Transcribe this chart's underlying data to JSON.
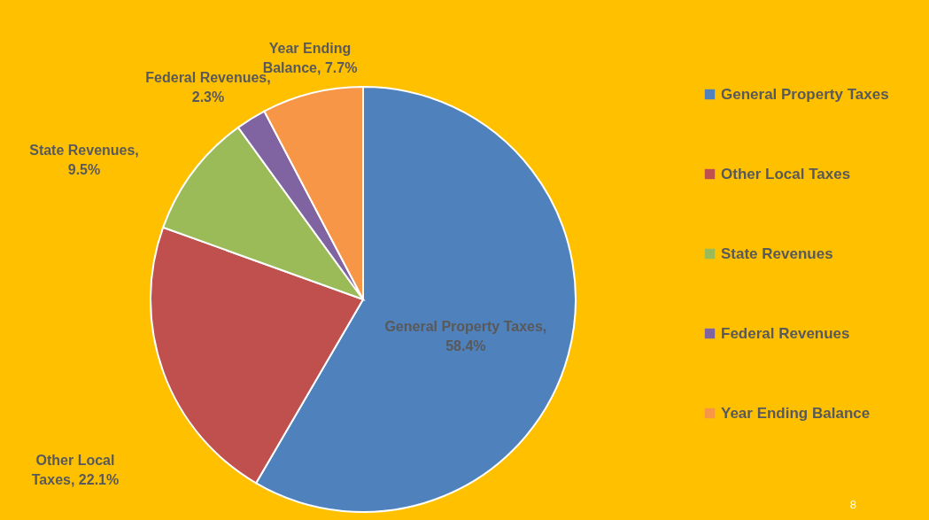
{
  "chart_data": {
    "type": "pie",
    "categories": [
      "General Property Taxes",
      "Other Local Taxes",
      "State Revenues",
      "Federal Revenues",
      "Year Ending Balance"
    ],
    "values": [
      58.4,
      22.1,
      9.5,
      2.3,
      7.7
    ],
    "colors": [
      "#4f81bd",
      "#c0504d",
      "#9bbb59",
      "#8064a2",
      "#f79646"
    ],
    "value_labels": [
      "General Property Taxes, 58.4%",
      "Other Local Taxes, 22.1%",
      "State Revenues, 9.5%",
      "Federal Revenues, 2.3%",
      "Year Ending Balance, 7.7%"
    ],
    "legend": "right",
    "annotations": [
      "8"
    ]
  }
}
